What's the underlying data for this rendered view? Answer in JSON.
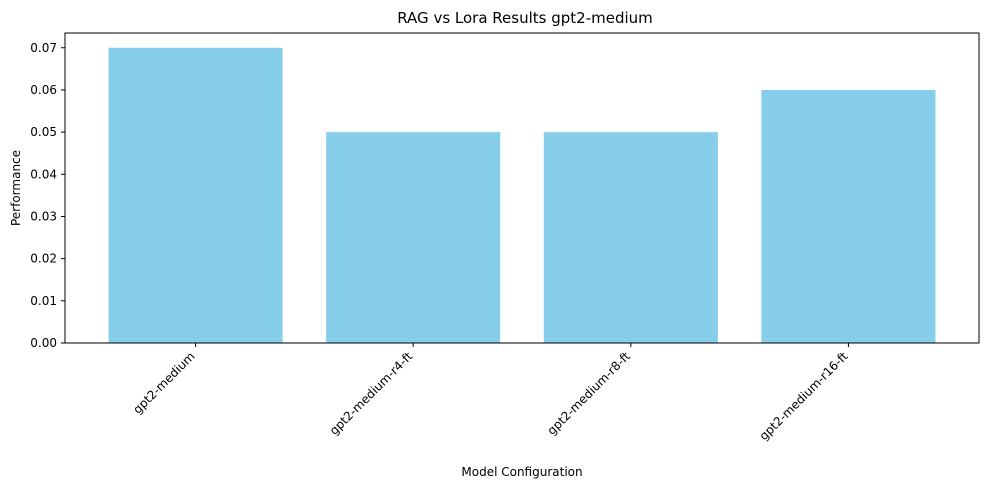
{
  "chart_data": {
    "type": "bar",
    "title": "RAG vs Lora Results gpt2-medium",
    "xlabel": "Model Configuration",
    "ylabel": "Performance",
    "categories": [
      "gpt2-medium",
      "gpt2-medium-r4-ft",
      "gpt2-medium-r8-ft",
      "gpt2-medium-r16-ft"
    ],
    "values": [
      0.07,
      0.05,
      0.05,
      0.06
    ],
    "ylim": [
      0,
      0.0735
    ],
    "yticks": [
      0.0,
      0.01,
      0.02,
      0.03,
      0.04,
      0.05,
      0.06,
      0.07
    ],
    "ytick_labels": [
      "0.00",
      "0.01",
      "0.02",
      "0.03",
      "0.04",
      "0.05",
      "0.06",
      "0.07"
    ],
    "bar_color": "#87CEEB",
    "grid": false,
    "x_tick_rotation": "45 degrees"
  }
}
